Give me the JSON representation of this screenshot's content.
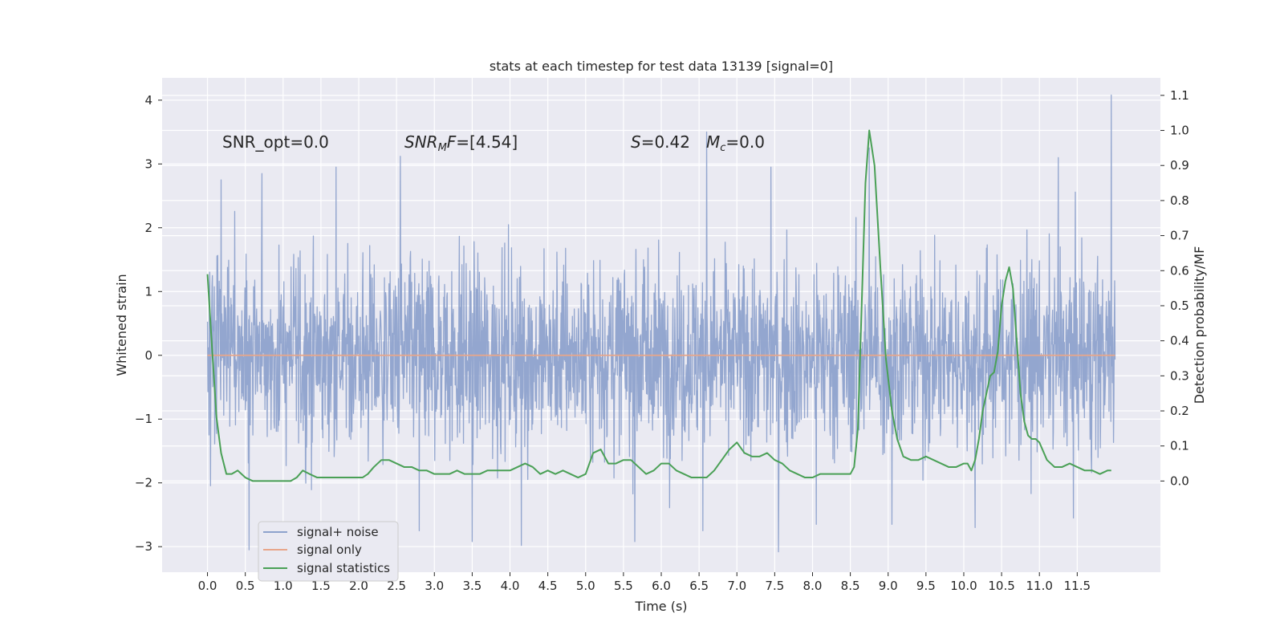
{
  "chart_data": {
    "type": "line",
    "title": "stats at each timestep for test data 13139 [signal=0]",
    "xlabel": "Time (s)",
    "ylabel": "Whitened strain",
    "ylabel_right": "Detection probability/MF",
    "xlim": [
      -0.6,
      12.6
    ],
    "ylim": [
      -3.4,
      4.35
    ],
    "ylim_right": [
      -0.26,
      1.15
    ],
    "x_ticks": [
      0.0,
      0.5,
      1.0,
      1.5,
      2.0,
      2.5,
      3.0,
      3.5,
      4.0,
      4.5,
      5.0,
      5.5,
      6.0,
      6.5,
      7.0,
      7.5,
      8.0,
      8.5,
      9.0,
      9.5,
      10.0,
      10.5,
      11.0,
      11.5
    ],
    "x_tick_labels": [
      "0.0",
      "0.5",
      "1.0",
      "1.5",
      "2.0",
      "2.5",
      "3.0",
      "3.5",
      "4.0",
      "4.5",
      "5.0",
      "5.5",
      "6.0",
      "6.5",
      "7.0",
      "7.5",
      "8.0",
      "8.5",
      "9.0",
      "9.5",
      "10.0",
      "10.5",
      "11.0",
      "11.5"
    ],
    "y_ticks": [
      -3,
      -2,
      -1,
      0,
      1,
      2,
      3,
      4
    ],
    "y_tick_labels": [
      "−3",
      "−2",
      "−1",
      "0",
      "1",
      "2",
      "3",
      "4"
    ],
    "y_right_ticks": [
      0.0,
      0.1,
      0.2,
      0.3,
      0.4,
      0.5,
      0.6,
      0.7,
      0.8,
      0.9,
      1.0,
      1.1
    ],
    "y_right_tick_labels": [
      "0.0",
      "0.1",
      "0.2",
      "0.3",
      "0.4",
      "0.5",
      "0.6",
      "0.7",
      "0.8",
      "0.9",
      "1.0",
      "1.1"
    ],
    "grid": true,
    "legend_position": "lower-left",
    "series": [
      {
        "name": "signal+ noise",
        "axis": "left",
        "style": "noise",
        "color": "#8ea2cc",
        "t_range": [
          0.0,
          12.0
        ],
        "approx_std": 0.75,
        "peaks": [
          {
            "x": 0.18,
            "y": 2.75
          },
          {
            "x": 0.72,
            "y": 2.85
          },
          {
            "x": 1.7,
            "y": 2.95
          },
          {
            "x": 2.55,
            "y": 3.12
          },
          {
            "x": 5.65,
            "y": 3.05
          },
          {
            "x": 6.6,
            "y": 3.5
          },
          {
            "x": 7.45,
            "y": 2.95
          },
          {
            "x": 8.75,
            "y": 3.25
          },
          {
            "x": 11.25,
            "y": 3.1
          },
          {
            "x": 11.95,
            "y": 4.08
          },
          {
            "x": 0.55,
            "y": -3.05
          },
          {
            "x": 2.8,
            "y": -2.75
          },
          {
            "x": 3.5,
            "y": -2.92
          },
          {
            "x": 4.15,
            "y": -2.98
          },
          {
            "x": 5.65,
            "y": -2.92
          },
          {
            "x": 6.55,
            "y": -2.75
          },
          {
            "x": 7.55,
            "y": -3.08
          },
          {
            "x": 8.05,
            "y": -2.65
          },
          {
            "x": 9.05,
            "y": -2.65
          },
          {
            "x": 10.15,
            "y": -2.7
          },
          {
            "x": 11.45,
            "y": -2.55
          }
        ]
      },
      {
        "name": "signal only",
        "axis": "left",
        "color": "#e8a68a",
        "x": [
          0.0,
          12.0
        ],
        "y": [
          0.0,
          0.0
        ]
      },
      {
        "name": "signal statistics",
        "axis": "right",
        "color": "#4aa056",
        "x": [
          0.0,
          0.06,
          0.12,
          0.18,
          0.25,
          0.32,
          0.4,
          0.5,
          0.6,
          0.7,
          0.8,
          0.9,
          1.0,
          1.1,
          1.18,
          1.26,
          1.35,
          1.45,
          1.55,
          1.65,
          1.75,
          1.85,
          1.95,
          2.05,
          2.12,
          2.2,
          2.3,
          2.4,
          2.5,
          2.6,
          2.7,
          2.8,
          2.9,
          3.0,
          3.1,
          3.2,
          3.3,
          3.4,
          3.5,
          3.6,
          3.7,
          3.8,
          3.9,
          4.0,
          4.1,
          4.2,
          4.3,
          4.4,
          4.5,
          4.6,
          4.7,
          4.8,
          4.9,
          5.0,
          5.1,
          5.2,
          5.3,
          5.4,
          5.5,
          5.6,
          5.7,
          5.8,
          5.9,
          6.0,
          6.1,
          6.2,
          6.3,
          6.4,
          6.5,
          6.6,
          6.7,
          6.8,
          6.9,
          7.0,
          7.1,
          7.2,
          7.3,
          7.4,
          7.5,
          7.6,
          7.7,
          7.8,
          7.9,
          8.0,
          8.1,
          8.2,
          8.3,
          8.4,
          8.5,
          8.55,
          8.6,
          8.65,
          8.7,
          8.75,
          8.82,
          8.9,
          8.97,
          9.05,
          9.12,
          9.2,
          9.3,
          9.4,
          9.5,
          9.6,
          9.7,
          9.8,
          9.9,
          10.0,
          10.05,
          10.1,
          10.15,
          10.2,
          10.25,
          10.3,
          10.35,
          10.4,
          10.45,
          10.5,
          10.55,
          10.6,
          10.65,
          10.7,
          10.75,
          10.8,
          10.85,
          10.9,
          10.95,
          11.0,
          11.1,
          11.2,
          11.3,
          11.4,
          11.5,
          11.6,
          11.7,
          11.8,
          11.9,
          11.95
        ],
        "y": [
          0.59,
          0.38,
          0.18,
          0.08,
          0.02,
          0.02,
          0.03,
          0.01,
          0.0,
          0.0,
          0.0,
          0.0,
          0.0,
          0.0,
          0.01,
          0.03,
          0.02,
          0.01,
          0.01,
          0.01,
          0.01,
          0.01,
          0.01,
          0.01,
          0.02,
          0.04,
          0.06,
          0.06,
          0.05,
          0.04,
          0.04,
          0.03,
          0.03,
          0.02,
          0.02,
          0.02,
          0.03,
          0.02,
          0.02,
          0.02,
          0.03,
          0.03,
          0.03,
          0.03,
          0.04,
          0.05,
          0.04,
          0.02,
          0.03,
          0.02,
          0.03,
          0.02,
          0.01,
          0.02,
          0.08,
          0.09,
          0.05,
          0.05,
          0.06,
          0.06,
          0.04,
          0.02,
          0.03,
          0.05,
          0.05,
          0.03,
          0.02,
          0.01,
          0.01,
          0.01,
          0.03,
          0.06,
          0.09,
          0.11,
          0.08,
          0.07,
          0.07,
          0.08,
          0.06,
          0.05,
          0.03,
          0.02,
          0.01,
          0.01,
          0.02,
          0.02,
          0.02,
          0.02,
          0.02,
          0.04,
          0.15,
          0.5,
          0.85,
          1.0,
          0.9,
          0.6,
          0.35,
          0.2,
          0.12,
          0.07,
          0.06,
          0.06,
          0.07,
          0.06,
          0.05,
          0.04,
          0.04,
          0.05,
          0.05,
          0.03,
          0.06,
          0.12,
          0.2,
          0.25,
          0.3,
          0.31,
          0.37,
          0.5,
          0.57,
          0.61,
          0.55,
          0.4,
          0.25,
          0.17,
          0.13,
          0.12,
          0.12,
          0.11,
          0.06,
          0.04,
          0.04,
          0.05,
          0.04,
          0.03,
          0.03,
          0.02,
          0.03,
          0.03
        ],
        "dense_in_figure": true
      }
    ],
    "annotations": [
      {
        "text": "SNR_opt=0.0",
        "x": 0.2,
        "y": 3.3
      },
      {
        "text": "SNR_MF=[4.54]",
        "x": 2.6,
        "y": 3.3
      },
      {
        "text": "S=0.42",
        "x": 5.6,
        "y": 3.3
      },
      {
        "text": "M_c=0.0",
        "x": 6.6,
        "y": 3.3
      }
    ]
  }
}
